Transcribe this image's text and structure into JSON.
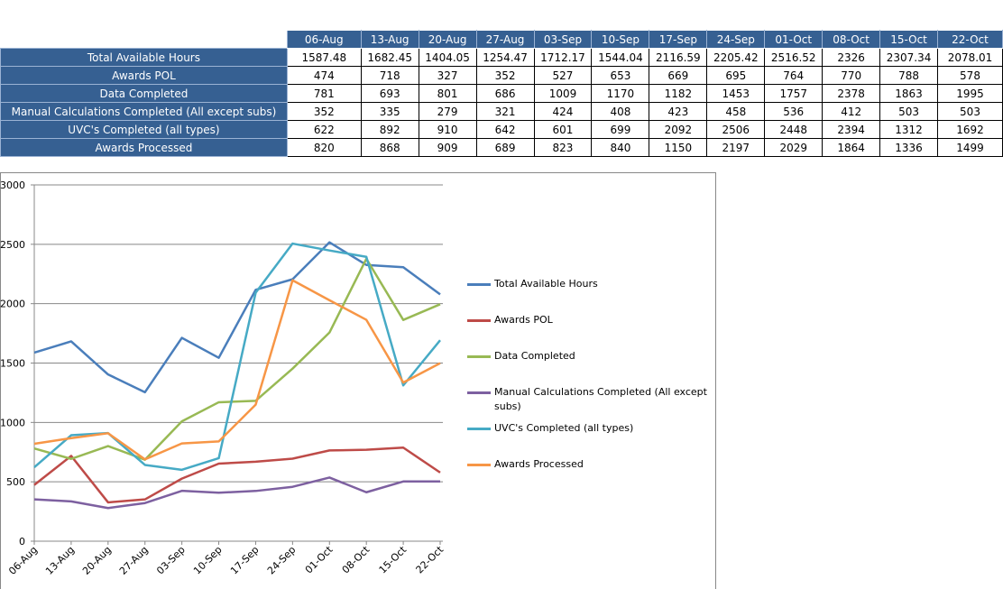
{
  "chart_data": {
    "type": "line",
    "categories": [
      "06-Aug",
      "13-Aug",
      "20-Aug",
      "27-Aug",
      "03-Sep",
      "10-Sep",
      "17-Sep",
      "24-Sep",
      "01-Oct",
      "08-Oct",
      "15-Oct",
      "22-Oct"
    ],
    "series": [
      {
        "name": "Total Available Hours",
        "color": "#4a7ebb",
        "values": [
          1587.48,
          1682.45,
          1404.05,
          1254.47,
          1712.17,
          1544.04,
          2116.59,
          2205.42,
          2516.52,
          2326,
          2307.34,
          2078.01
        ]
      },
      {
        "name": "Awards POL",
        "color": "#be4b48",
        "values": [
          474,
          718,
          327,
          352,
          527,
          653,
          669,
          695,
          764,
          770,
          788,
          578
        ]
      },
      {
        "name": "Data Completed",
        "color": "#98b954",
        "values": [
          781,
          693,
          801,
          686,
          1009,
          1170,
          1182,
          1453,
          1757,
          2378,
          1863,
          1995
        ]
      },
      {
        "name": "Manual Calculations Completed (All except subs)",
        "color": "#7d60a0",
        "values": [
          352,
          335,
          279,
          321,
          424,
          408,
          423,
          458,
          536,
          412,
          503,
          503
        ]
      },
      {
        "name": "UVC's Completed (all types)",
        "color": "#46aac5",
        "values": [
          622,
          892,
          910,
          642,
          601,
          699,
          2092,
          2506,
          2448,
          2394,
          1312,
          1692
        ]
      },
      {
        "name": "Awards Processed",
        "color": "#f79646",
        "values": [
          820,
          868,
          909,
          689,
          823,
          840,
          1150,
          2197,
          2029,
          1864,
          1336,
          1499
        ]
      }
    ],
    "ylim": [
      0,
      3000
    ],
    "yticks": [
      0,
      500,
      1000,
      1500,
      2000,
      2500,
      3000
    ],
    "grid": true
  }
}
